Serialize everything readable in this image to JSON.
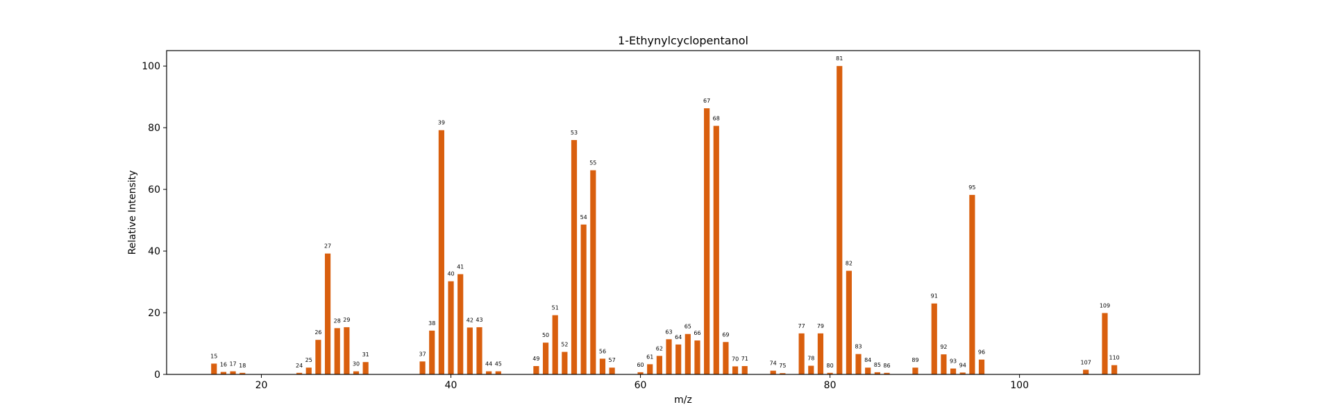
{
  "chart_data": {
    "type": "bar",
    "title": "1-Ethynylcyclopentanol",
    "xlabel": "m/z",
    "ylabel": "Relative Intensity",
    "xlim": [
      10,
      119
    ],
    "ylim": [
      0,
      105
    ],
    "xticks": [
      20,
      40,
      60,
      80,
      100
    ],
    "yticks": [
      0,
      20,
      40,
      60,
      80,
      100
    ],
    "bar_color": "#d95f0e",
    "grid": false,
    "x": [
      15,
      16,
      17,
      18,
      24,
      25,
      26,
      27,
      28,
      29,
      30,
      31,
      37,
      38,
      39,
      40,
      41,
      42,
      43,
      44,
      45,
      49,
      50,
      51,
      52,
      53,
      54,
      55,
      56,
      57,
      60,
      61,
      62,
      63,
      64,
      65,
      66,
      67,
      68,
      69,
      70,
      71,
      74,
      75,
      77,
      78,
      79,
      80,
      81,
      82,
      83,
      84,
      85,
      86,
      89,
      91,
      92,
      93,
      94,
      95,
      96,
      107,
      109,
      110
    ],
    "values": [
      3.5,
      0.8,
      1.0,
      0.5,
      0.5,
      2.2,
      11.2,
      39.2,
      15.0,
      15.3,
      1.0,
      4.0,
      4.2,
      14.2,
      79.2,
      30.2,
      32.5,
      15.2,
      15.3,
      1.0,
      1.0,
      2.7,
      10.3,
      19.2,
      7.3,
      76.0,
      48.6,
      66.2,
      5.1,
      2.2,
      0.7,
      3.3,
      6.0,
      11.4,
      9.7,
      13.1,
      11.0,
      86.3,
      80.6,
      10.5,
      2.6,
      2.7,
      1.2,
      0.4,
      13.3,
      2.8,
      13.3,
      0.5,
      100.0,
      33.6,
      6.6,
      2.2,
      0.7,
      0.5,
      2.2,
      23.0,
      6.5,
      1.9,
      0.6,
      58.2,
      4.8,
      1.5,
      19.9,
      3.0
    ],
    "labels": [
      "15",
      "16",
      "17",
      "18",
      "24",
      "25",
      "26",
      "27",
      "28",
      "29",
      "30",
      "31",
      "37",
      "38",
      "39",
      "40",
      "41",
      "42",
      "43",
      "44",
      "45",
      "49",
      "50",
      "51",
      "52",
      "53",
      "54",
      "55",
      "56",
      "57",
      "60",
      "61",
      "62",
      "63",
      "64",
      "65",
      "66",
      "67",
      "68",
      "69",
      "70",
      "71",
      "74",
      "75",
      "77",
      "78",
      "79",
      "80",
      "81",
      "82",
      "83",
      "84",
      "85",
      "86",
      "89",
      "91",
      "92",
      "93",
      "94",
      "95",
      "96",
      "107",
      "109",
      "110"
    ]
  }
}
